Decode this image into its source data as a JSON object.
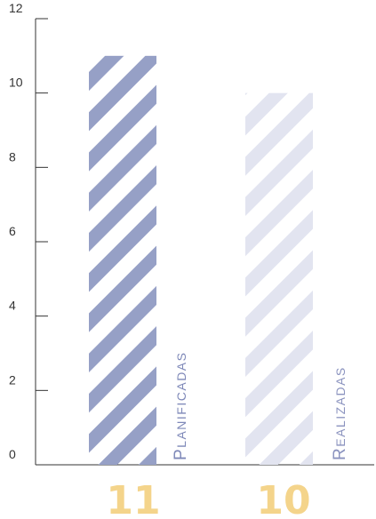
{
  "chart_data": {
    "type": "bar",
    "categories": [
      "Planificadas",
      "Realizadas"
    ],
    "values": [
      11,
      10
    ],
    "value_labels": [
      "11",
      "10"
    ],
    "ylim": [
      0,
      12
    ],
    "yticks": [
      0,
      2,
      4,
      6,
      8,
      10,
      12
    ],
    "grid": false,
    "title": "",
    "xlabel": "",
    "ylabel": "",
    "colors": {
      "bar_stripes": [
        "#96a0c6",
        "#e2e4f0"
      ],
      "category_label": [
        "#7e88b8",
        "#8b93bf"
      ],
      "value_label": "#f4d48b",
      "axis": "#333333"
    },
    "pattern": "diagonal-stripes"
  }
}
